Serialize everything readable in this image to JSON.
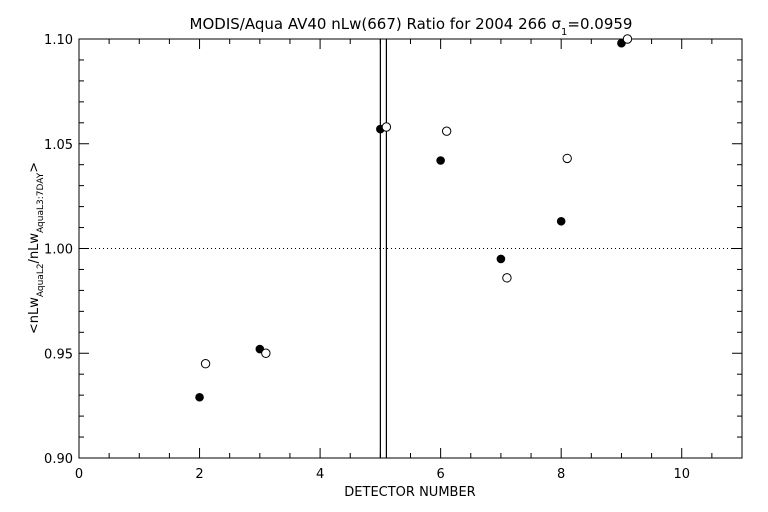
{
  "chart_data": {
    "type": "scatter",
    "title_main": "MODIS/Aqua AV40 nLw(667) Ratio for 2004 266 ",
    "title_sigma": "σ",
    "title_sigma_sub": "1",
    "title_value": "=0.0959",
    "xlabel": "DETECTOR NUMBER",
    "ylabel": {
      "p1": "<nLw",
      "s1": "AquaL2",
      "p2": "/nLw",
      "s2": "AquaL3:7DAY",
      "p3": ">"
    },
    "xlim": [
      0,
      11
    ],
    "ylim": [
      0.9,
      1.1
    ],
    "x_ticks": [
      0,
      2,
      4,
      6,
      8,
      10
    ],
    "x_tick_labels": [
      "0",
      "2",
      "4",
      "6",
      "8",
      "10"
    ],
    "x_minor_step": 0.5,
    "y_ticks": [
      0.9,
      0.95,
      1.0,
      1.05,
      1.1
    ],
    "y_tick_labels": [
      "0.90",
      "0.95",
      "1.00",
      "1.05",
      "1.10"
    ],
    "y_minor_step": 0.01,
    "reference_line_y": 1.0,
    "vertical_lines_x": [
      5.0,
      5.1
    ],
    "grid": false,
    "series": [
      {
        "marker": "filled-circle",
        "x": [
          2,
          3,
          5,
          6,
          7,
          8,
          9
        ],
        "y": [
          0.929,
          0.952,
          1.057,
          1.042,
          0.995,
          1.013,
          1.098
        ]
      },
      {
        "marker": "open-circle",
        "x": [
          2.1,
          3.1,
          5.1,
          6.1,
          7.1,
          8.1,
          9.1
        ],
        "y": [
          0.945,
          0.95,
          1.058,
          1.056,
          0.986,
          1.043,
          1.1
        ]
      }
    ]
  }
}
